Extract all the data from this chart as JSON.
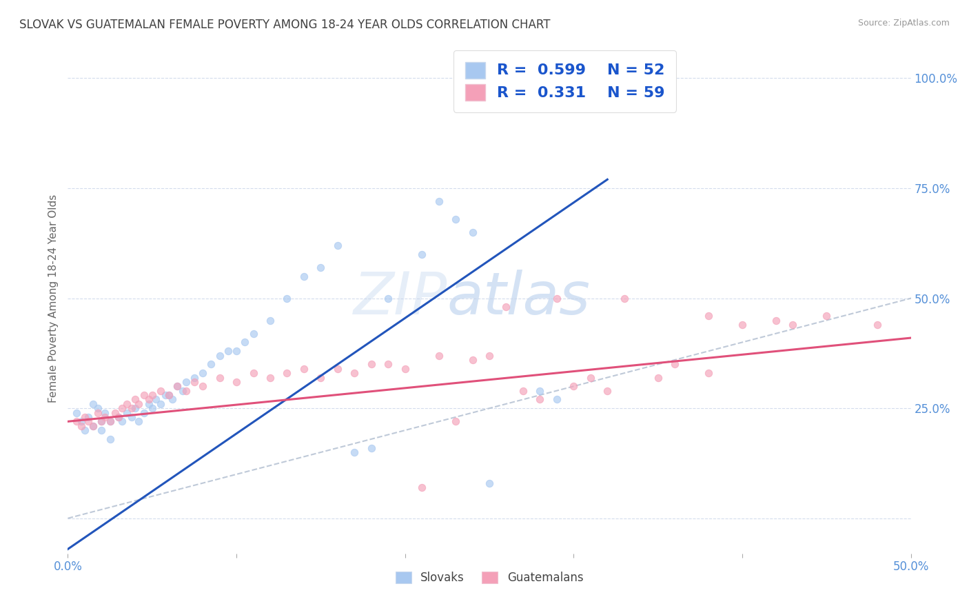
{
  "title": "SLOVAK VS GUATEMALAN FEMALE POVERTY AMONG 18-24 YEAR OLDS CORRELATION CHART",
  "source": "Source: ZipAtlas.com",
  "ylabel": "Female Poverty Among 18-24 Year Olds",
  "yticks": [
    0.0,
    0.25,
    0.5,
    0.75,
    1.0
  ],
  "ytick_labels": [
    "",
    "25.0%",
    "50.0%",
    "75.0%",
    "100.0%"
  ],
  "xticks": [
    0.0,
    0.1,
    0.2,
    0.3,
    0.4,
    0.5
  ],
  "xtick_labels": [
    "0.0%",
    "",
    "",
    "",
    "",
    "50.0%"
  ],
  "xlim": [
    0.0,
    0.5
  ],
  "ylim": [
    -0.08,
    1.08
  ],
  "slovak_color": "#a8c8f0",
  "guatemalan_color": "#f4a0b8",
  "slovak_line_color": "#2255bb",
  "guatemalan_line_color": "#e0507a",
  "diagonal_color": "#b8c4d4",
  "background_color": "#ffffff",
  "title_color": "#404040",
  "axis_label_color": "#5590d8",
  "marker_size": 55,
  "marker_alpha": 0.65,
  "slovak_line_x0": 0.0,
  "slovak_line_y0": -0.07,
  "slovak_line_x1": 0.32,
  "slovak_line_y1": 0.77,
  "guatemalan_line_x0": 0.0,
  "guatemalan_line_y0": 0.22,
  "guatemalan_line_x1": 0.5,
  "guatemalan_line_y1": 0.41,
  "slovak_scatter_x": [
    0.005,
    0.008,
    0.01,
    0.012,
    0.015,
    0.015,
    0.018,
    0.02,
    0.02,
    0.022,
    0.025,
    0.025,
    0.03,
    0.032,
    0.035,
    0.038,
    0.04,
    0.042,
    0.045,
    0.048,
    0.05,
    0.052,
    0.055,
    0.058,
    0.06,
    0.062,
    0.065,
    0.068,
    0.07,
    0.075,
    0.08,
    0.085,
    0.09,
    0.095,
    0.1,
    0.105,
    0.11,
    0.12,
    0.13,
    0.14,
    0.15,
    0.16,
    0.22,
    0.23,
    0.24,
    0.28,
    0.29,
    0.21,
    0.19,
    0.18,
    0.17,
    0.25
  ],
  "slovak_scatter_y": [
    0.24,
    0.22,
    0.2,
    0.23,
    0.21,
    0.26,
    0.25,
    0.2,
    0.22,
    0.24,
    0.18,
    0.22,
    0.23,
    0.22,
    0.24,
    0.23,
    0.25,
    0.22,
    0.24,
    0.26,
    0.25,
    0.27,
    0.26,
    0.28,
    0.28,
    0.27,
    0.3,
    0.29,
    0.31,
    0.32,
    0.33,
    0.35,
    0.37,
    0.38,
    0.38,
    0.4,
    0.42,
    0.45,
    0.5,
    0.55,
    0.57,
    0.62,
    0.72,
    0.68,
    0.65,
    0.29,
    0.27,
    0.6,
    0.5,
    0.16,
    0.15,
    0.08
  ],
  "guatemalan_scatter_x": [
    0.005,
    0.008,
    0.01,
    0.012,
    0.015,
    0.018,
    0.02,
    0.022,
    0.025,
    0.028,
    0.03,
    0.032,
    0.035,
    0.038,
    0.04,
    0.042,
    0.045,
    0.048,
    0.05,
    0.055,
    0.06,
    0.065,
    0.07,
    0.075,
    0.08,
    0.09,
    0.1,
    0.11,
    0.12,
    0.13,
    0.14,
    0.15,
    0.16,
    0.17,
    0.18,
    0.19,
    0.2,
    0.22,
    0.24,
    0.25,
    0.27,
    0.28,
    0.3,
    0.32,
    0.35,
    0.38,
    0.4,
    0.42,
    0.45,
    0.48,
    0.36,
    0.33,
    0.29,
    0.26,
    0.23,
    0.21,
    0.31,
    0.38,
    0.43
  ],
  "guatemalan_scatter_y": [
    0.22,
    0.21,
    0.23,
    0.22,
    0.21,
    0.24,
    0.22,
    0.23,
    0.22,
    0.24,
    0.23,
    0.25,
    0.26,
    0.25,
    0.27,
    0.26,
    0.28,
    0.27,
    0.28,
    0.29,
    0.28,
    0.3,
    0.29,
    0.31,
    0.3,
    0.32,
    0.31,
    0.33,
    0.32,
    0.33,
    0.34,
    0.32,
    0.34,
    0.33,
    0.35,
    0.35,
    0.34,
    0.37,
    0.36,
    0.37,
    0.29,
    0.27,
    0.3,
    0.29,
    0.32,
    0.33,
    0.44,
    0.45,
    0.46,
    0.44,
    0.35,
    0.5,
    0.5,
    0.48,
    0.22,
    0.07,
    0.32,
    0.46,
    0.44
  ]
}
